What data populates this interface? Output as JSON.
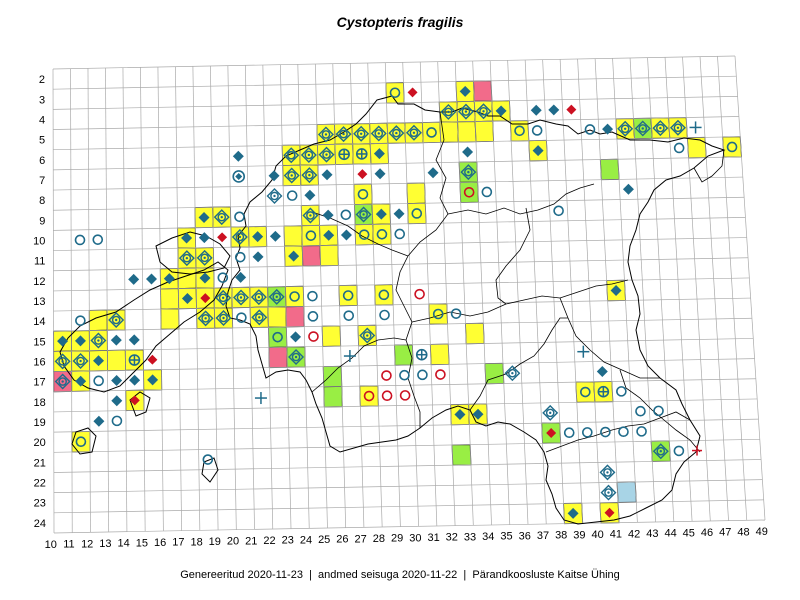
{
  "title": "Cystopteris fragilis",
  "footer": {
    "generated": "Genereeritud 2020-11-23",
    "data_state": "andmed seisuga 2020-11-22",
    "organization": "Pärandkoosluste Kaitse Ühing",
    "separator": "  |  "
  },
  "grid": {
    "x_labels": [
      "10",
      "11",
      "12",
      "13",
      "14",
      "15",
      "16",
      "17",
      "18",
      "19",
      "20",
      "21",
      "22",
      "23",
      "24",
      "25",
      "26",
      "27",
      "28",
      "29",
      "30",
      "31",
      "32",
      "33",
      "34",
      "35",
      "36",
      "37",
      "38",
      "39",
      "40",
      "41",
      "42",
      "43",
      "44",
      "45",
      "46",
      "47",
      "48",
      "49"
    ],
    "y_labels": [
      "2",
      "3",
      "4",
      "5",
      "6",
      "7",
      "8",
      "9",
      "10",
      "11",
      "12",
      "13",
      "14",
      "15",
      "16",
      "17",
      "18",
      "19",
      "20",
      "21",
      "22",
      "23",
      "24"
    ]
  },
  "colors": {
    "yellow_cell": "#ffff33",
    "green_cell": "#99ee44",
    "pink_cell": "#f26b8a",
    "blue_cell": "#a8d4e6",
    "symbol_teal": "#1f6b8a",
    "symbol_red": "#cc1122",
    "grid_line": "#aaaaaa",
    "border": "#000000"
  },
  "legend_note": "",
  "cells": [
    {
      "c": 29,
      "r": 3,
      "fill": "y",
      "sym": "ring"
    },
    {
      "c": 30,
      "r": 3,
      "sym": "rdia"
    },
    {
      "c": 33,
      "r": 3,
      "fill": "y",
      "sym": "dia"
    },
    {
      "c": 34,
      "r": 3,
      "fill": "p"
    },
    {
      "c": 33,
      "r": 4,
      "fill": "y",
      "sym": "cdia"
    },
    {
      "c": 34,
      "r": 4,
      "fill": "y",
      "sym": "cdia"
    },
    {
      "c": 35,
      "r": 4,
      "fill": "y",
      "sym": "dia"
    },
    {
      "c": 32,
      "r": 4,
      "fill": "y",
      "sym": "cdia"
    },
    {
      "c": 37,
      "r": 4,
      "sym": "dia"
    },
    {
      "c": 39,
      "r": 4,
      "sym": "rdia"
    },
    {
      "c": 38,
      "r": 4,
      "sym": "dia"
    },
    {
      "c": 25,
      "r": 5,
      "fill": "y",
      "sym": "cdia"
    },
    {
      "c": 26,
      "r": 5,
      "fill": "y",
      "sym": "cdia"
    },
    {
      "c": 27,
      "r": 5,
      "fill": "y",
      "sym": "cdia"
    },
    {
      "c": 28,
      "r": 5,
      "fill": "y",
      "sym": "cdia"
    },
    {
      "c": 29,
      "r": 5,
      "fill": "y",
      "sym": "cdia"
    },
    {
      "c": 30,
      "r": 5,
      "fill": "y",
      "sym": "cdia"
    },
    {
      "c": 31,
      "r": 5,
      "fill": "y",
      "sym": "ring"
    },
    {
      "c": 32,
      "r": 5,
      "fill": "y"
    },
    {
      "c": 33,
      "r": 5,
      "fill": "y"
    },
    {
      "c": 34,
      "r": 5,
      "fill": "y"
    },
    {
      "c": 36,
      "r": 5,
      "fill": "y",
      "sym": "ring"
    },
    {
      "c": 37,
      "r": 5,
      "sym": "ring"
    },
    {
      "c": 41,
      "r": 5,
      "sym": "dia"
    },
    {
      "c": 40,
      "r": 5,
      "sym": "ring"
    },
    {
      "c": 42,
      "r": 5,
      "fill": "y",
      "sym": "cdia"
    },
    {
      "c": 43,
      "r": 5,
      "fill": "g",
      "sym": "cdia"
    },
    {
      "c": 44,
      "r": 5,
      "fill": "y",
      "sym": "cdia"
    },
    {
      "c": 45,
      "r": 5,
      "fill": "y",
      "sym": "cdia"
    },
    {
      "c": 46,
      "r": 5,
      "sym": "cross"
    },
    {
      "c": 23,
      "r": 6,
      "fill": "y",
      "sym": "ocdia"
    },
    {
      "c": 24,
      "r": 6,
      "fill": "y",
      "sym": "cdia"
    },
    {
      "c": 25,
      "r": 6,
      "fill": "y",
      "sym": "cdia"
    },
    {
      "c": 26,
      "r": 6,
      "fill": "y",
      "sym": "cring"
    },
    {
      "c": 27,
      "r": 6,
      "fill": "y",
      "sym": "cring"
    },
    {
      "c": 28,
      "r": 6,
      "fill": "y",
      "sym": "dia"
    },
    {
      "c": 33,
      "r": 6,
      "sym": "dia"
    },
    {
      "c": 37,
      "r": 6,
      "fill": "y",
      "sym": "dia"
    },
    {
      "c": 45,
      "r": 6,
      "sym": "ring"
    },
    {
      "c": 46,
      "r": 6,
      "fill": "y"
    },
    {
      "c": 48,
      "r": 6,
      "fill": "y",
      "sym": "ring"
    },
    {
      "c": 20,
      "r": 6,
      "sym": "dia"
    },
    {
      "c": 23,
      "r": 7,
      "fill": "y",
      "sym": "cdia"
    },
    {
      "c": 24,
      "r": 7,
      "fill": "y",
      "sym": "cdia"
    },
    {
      "c": 25,
      "r": 7,
      "sym": "dia"
    },
    {
      "c": 27,
      "r": 7,
      "sym": "rdia"
    },
    {
      "c": 28,
      "r": 7,
      "sym": "dia"
    },
    {
      "c": 33,
      "r": 7,
      "fill": "g",
      "sym": "cdia"
    },
    {
      "c": 41,
      "r": 7,
      "fill": "g"
    },
    {
      "c": 20,
      "r": 7,
      "sym": "oring"
    },
    {
      "c": 22,
      "r": 7,
      "sym": "dia"
    },
    {
      "c": 31,
      "r": 7,
      "sym": "dia"
    },
    {
      "c": 22,
      "r": 8,
      "sym": "cdia"
    },
    {
      "c": 23,
      "r": 8,
      "sym": "ring"
    },
    {
      "c": 24,
      "r": 8,
      "sym": "dia"
    },
    {
      "c": 27,
      "r": 8,
      "fill": "y",
      "sym": "ring"
    },
    {
      "c": 30,
      "r": 8,
      "fill": "y"
    },
    {
      "c": 33,
      "r": 8,
      "fill": "g",
      "sym": "rring"
    },
    {
      "c": 34,
      "r": 8,
      "sym": "ring"
    },
    {
      "c": 42,
      "r": 8,
      "sym": "dia"
    },
    {
      "c": 18,
      "r": 9,
      "fill": "y",
      "sym": "dia"
    },
    {
      "c": 19,
      "r": 9,
      "fill": "y",
      "sym": "cdia"
    },
    {
      "c": 20,
      "r": 9,
      "sym": "ring"
    },
    {
      "c": 24,
      "r": 9,
      "fill": "y",
      "sym": "cdia"
    },
    {
      "c": 25,
      "r": 9,
      "sym": "dia"
    },
    {
      "c": 26,
      "r": 9,
      "sym": "ring"
    },
    {
      "c": 27,
      "r": 9,
      "fill": "g",
      "sym": "cdia"
    },
    {
      "c": 28,
      "r": 9,
      "fill": "y",
      "sym": "dia"
    },
    {
      "c": 29,
      "r": 9,
      "sym": "dia"
    },
    {
      "c": 30,
      "r": 9,
      "fill": "y",
      "sym": "ring"
    },
    {
      "c": 38,
      "r": 9,
      "sym": "ring"
    },
    {
      "c": 11,
      "r": 10,
      "sym": "ring"
    },
    {
      "c": 12,
      "r": 10,
      "sym": "ring"
    },
    {
      "c": 17,
      "r": 10,
      "fill": "y",
      "sym": "dia"
    },
    {
      "c": 18,
      "r": 10,
      "sym": "dia"
    },
    {
      "c": 19,
      "r": 10,
      "sym": "rdia"
    },
    {
      "c": 20,
      "r": 10,
      "fill": "y",
      "sym": "cdia"
    },
    {
      "c": 21,
      "r": 10,
      "fill": "y",
      "sym": "dia"
    },
    {
      "c": 22,
      "r": 10,
      "sym": "dia"
    },
    {
      "c": 23,
      "r": 10,
      "fill": "y"
    },
    {
      "c": 24,
      "r": 10,
      "fill": "y",
      "sym": "ring"
    },
    {
      "c": 25,
      "r": 10,
      "fill": "y",
      "sym": "dia"
    },
    {
      "c": 26,
      "r": 10,
      "sym": "dia"
    },
    {
      "c": 27,
      "r": 10,
      "fill": "y",
      "sym": "ring"
    },
    {
      "c": 28,
      "r": 10,
      "fill": "y",
      "sym": "ring"
    },
    {
      "c": 29,
      "r": 10,
      "sym": "ring"
    },
    {
      "c": 17,
      "r": 11,
      "fill": "y",
      "sym": "cdia"
    },
    {
      "c": 18,
      "r": 11,
      "fill": "y",
      "sym": "cdia"
    },
    {
      "c": 20,
      "r": 11,
      "sym": "ring"
    },
    {
      "c": 21,
      "r": 11,
      "sym": "dia"
    },
    {
      "c": 23,
      "r": 11,
      "fill": "y",
      "sym": "dia"
    },
    {
      "c": 24,
      "r": 11,
      "fill": "p"
    },
    {
      "c": 25,
      "r": 11,
      "fill": "y"
    },
    {
      "c": 14,
      "r": 12,
      "sym": "dia"
    },
    {
      "c": 15,
      "r": 12,
      "sym": "dia"
    },
    {
      "c": 16,
      "r": 12,
      "fill": "y",
      "sym": "dia"
    },
    {
      "c": 17,
      "r": 12,
      "fill": "y"
    },
    {
      "c": 18,
      "r": 12,
      "fill": "y",
      "sym": "dia"
    },
    {
      "c": 19,
      "r": 12,
      "sym": "ring"
    },
    {
      "c": 20,
      "r": 12,
      "sym": "dia"
    },
    {
      "c": 16,
      "r": 13,
      "fill": "y"
    },
    {
      "c": 17,
      "r": 13,
      "fill": "y",
      "sym": "dia"
    },
    {
      "c": 18,
      "r": 13,
      "fill": "y",
      "sym": "rdia"
    },
    {
      "c": 19,
      "r": 13,
      "fill": "y",
      "sym": "cdia"
    },
    {
      "c": 20,
      "r": 13,
      "fill": "y",
      "sym": "cdia"
    },
    {
      "c": 21,
      "r": 13,
      "fill": "y",
      "sym": "cdia"
    },
    {
      "c": 22,
      "r": 13,
      "fill": "g",
      "sym": "cdia"
    },
    {
      "c": 23,
      "r": 13,
      "fill": "y",
      "sym": "ring"
    },
    {
      "c": 24,
      "r": 13,
      "sym": "ring"
    },
    {
      "c": 26,
      "r": 13,
      "fill": "y",
      "sym": "ring"
    },
    {
      "c": 28,
      "r": 13,
      "fill": "y",
      "sym": "ring"
    },
    {
      "c": 30,
      "r": 13,
      "sym": "rring"
    },
    {
      "c": 41,
      "r": 13,
      "fill": "y",
      "sym": "dia"
    },
    {
      "c": 11,
      "r": 14,
      "sym": "ring"
    },
    {
      "c": 12,
      "r": 14,
      "fill": "y"
    },
    {
      "c": 13,
      "r": 14,
      "fill": "y",
      "sym": "cdia"
    },
    {
      "c": 16,
      "r": 14,
      "fill": "y"
    },
    {
      "c": 18,
      "r": 14,
      "fill": "y",
      "sym": "cdia"
    },
    {
      "c": 19,
      "r": 14,
      "fill": "y",
      "sym": "cdia"
    },
    {
      "c": 20,
      "r": 14,
      "sym": "ring"
    },
    {
      "c": 21,
      "r": 14,
      "fill": "y",
      "sym": "cdia"
    },
    {
      "c": 22,
      "r": 14,
      "fill": "y"
    },
    {
      "c": 23,
      "r": 14,
      "fill": "p"
    },
    {
      "c": 24,
      "r": 14,
      "sym": "ring"
    },
    {
      "c": 26,
      "r": 14,
      "sym": "ring"
    },
    {
      "c": 28,
      "r": 14,
      "sym": "ring"
    },
    {
      "c": 31,
      "r": 14,
      "fill": "y",
      "sym": "ring"
    },
    {
      "c": 32,
      "r": 14,
      "sym": "ring"
    },
    {
      "c": 10,
      "r": 15,
      "fill": "y",
      "sym": "dia"
    },
    {
      "c": 11,
      "r": 15,
      "fill": "y",
      "sym": "dia"
    },
    {
      "c": 12,
      "r": 15,
      "fill": "y",
      "sym": "cdia"
    },
    {
      "c": 13,
      "r": 15,
      "sym": "dia"
    },
    {
      "c": 14,
      "r": 15,
      "sym": "dia"
    },
    {
      "c": 22,
      "r": 15,
      "fill": "g",
      "sym": "ring"
    },
    {
      "c": 23,
      "r": 15,
      "sym": "dia"
    },
    {
      "c": 24,
      "r": 15,
      "sym": "rring"
    },
    {
      "c": 25,
      "r": 15,
      "fill": "y"
    },
    {
      "c": 27,
      "r": 15,
      "fill": "y",
      "sym": "cdia"
    },
    {
      "c": 33,
      "r": 15,
      "fill": "y"
    },
    {
      "c": 10,
      "r": 16,
      "fill": "y",
      "sym": "cdia"
    },
    {
      "c": 11,
      "r": 16,
      "fill": "y",
      "sym": "cdia"
    },
    {
      "c": 12,
      "r": 16,
      "fill": "y",
      "sym": "dia"
    },
    {
      "c": 13,
      "r": 16,
      "fill": "y"
    },
    {
      "c": 14,
      "r": 16,
      "fill": "y",
      "sym": "cring"
    },
    {
      "c": 15,
      "r": 16,
      "sym": "rdia"
    },
    {
      "c": 22,
      "r": 16,
      "fill": "p"
    },
    {
      "c": 23,
      "r": 16,
      "fill": "g",
      "sym": "cdia"
    },
    {
      "c": 26,
      "r": 16,
      "sym": "cross"
    },
    {
      "c": 29,
      "r": 16,
      "fill": "g"
    },
    {
      "c": 30,
      "r": 16,
      "sym": "cring"
    },
    {
      "c": 31,
      "r": 16,
      "fill": "y"
    },
    {
      "c": 39,
      "r": 16,
      "sym": "cross"
    },
    {
      "c": 10,
      "r": 17,
      "fill": "p",
      "sym": "cdia"
    },
    {
      "c": 11,
      "r": 17,
      "fill": "y",
      "sym": "dia"
    },
    {
      "c": 12,
      "r": 17,
      "sym": "ring"
    },
    {
      "c": 13,
      "r": 17,
      "sym": "dia"
    },
    {
      "c": 14,
      "r": 17,
      "sym": "dia"
    },
    {
      "c": 15,
      "r": 17,
      "fill": "y",
      "sym": "dia"
    },
    {
      "c": 25,
      "r": 17,
      "fill": "g"
    },
    {
      "c": 28,
      "r": 17,
      "sym": "rring"
    },
    {
      "c": 29,
      "r": 17,
      "sym": "ring"
    },
    {
      "c": 30,
      "r": 17,
      "sym": "ring"
    },
    {
      "c": 31,
      "r": 17,
      "sym": "rring"
    },
    {
      "c": 34,
      "r": 17,
      "fill": "g"
    },
    {
      "c": 35,
      "r": 17,
      "sym": "cdia"
    },
    {
      "c": 40,
      "r": 17,
      "sym": "dia"
    },
    {
      "c": 13,
      "r": 18,
      "sym": "dia"
    },
    {
      "c": 14,
      "r": 18,
      "fill": "y",
      "sym": "rdia"
    },
    {
      "c": 21,
      "r": 18,
      "sym": "cross"
    },
    {
      "c": 25,
      "r": 18,
      "fill": "g"
    },
    {
      "c": 27,
      "r": 18,
      "fill": "y",
      "sym": "rring"
    },
    {
      "c": 28,
      "r": 18,
      "sym": "rring"
    },
    {
      "c": 29,
      "r": 18,
      "sym": "rring"
    },
    {
      "c": 39,
      "r": 18,
      "fill": "y",
      "sym": "ring"
    },
    {
      "c": 40,
      "r": 18,
      "fill": "y",
      "sym": "cring"
    },
    {
      "c": 41,
      "r": 18,
      "sym": "ring"
    },
    {
      "c": 12,
      "r": 19,
      "sym": "dia"
    },
    {
      "c": 13,
      "r": 19,
      "sym": "ring"
    },
    {
      "c": 32,
      "r": 19,
      "fill": "y",
      "sym": "dia"
    },
    {
      "c": 33,
      "r": 19,
      "fill": "y",
      "sym": "dia"
    },
    {
      "c": 37,
      "r": 19,
      "sym": "cdia"
    },
    {
      "c": 42,
      "r": 19,
      "sym": "ring"
    },
    {
      "c": 43,
      "r": 19,
      "sym": "ring"
    },
    {
      "c": 11,
      "r": 20,
      "fill": "y",
      "sym": "ring"
    },
    {
      "c": 37,
      "r": 20,
      "fill": "g",
      "sym": "rdia"
    },
    {
      "c": 38,
      "r": 20,
      "sym": "ring"
    },
    {
      "c": 39,
      "r": 20,
      "sym": "ring"
    },
    {
      "c": 40,
      "r": 20,
      "sym": "ring"
    },
    {
      "c": 41,
      "r": 20,
      "sym": "ring"
    },
    {
      "c": 42,
      "r": 20,
      "sym": "ring"
    },
    {
      "c": 32,
      "r": 21,
      "fill": "g"
    },
    {
      "c": 43,
      "r": 21,
      "fill": "g",
      "sym": "cdia"
    },
    {
      "c": 44,
      "r": 21,
      "sym": "ring"
    },
    {
      "c": 45,
      "r": 21,
      "sym": "rcross"
    },
    {
      "c": 18,
      "r": 21,
      "sym": "ring"
    },
    {
      "c": 40,
      "r": 22,
      "sym": "cdia"
    },
    {
      "c": 40,
      "r": 23,
      "sym": "cdia"
    },
    {
      "c": 41,
      "r": 23,
      "fill": "b"
    },
    {
      "c": 38,
      "r": 24,
      "fill": "y",
      "sym": "dia"
    },
    {
      "c": 40,
      "r": 24,
      "fill": "y",
      "sym": "rdia"
    }
  ]
}
